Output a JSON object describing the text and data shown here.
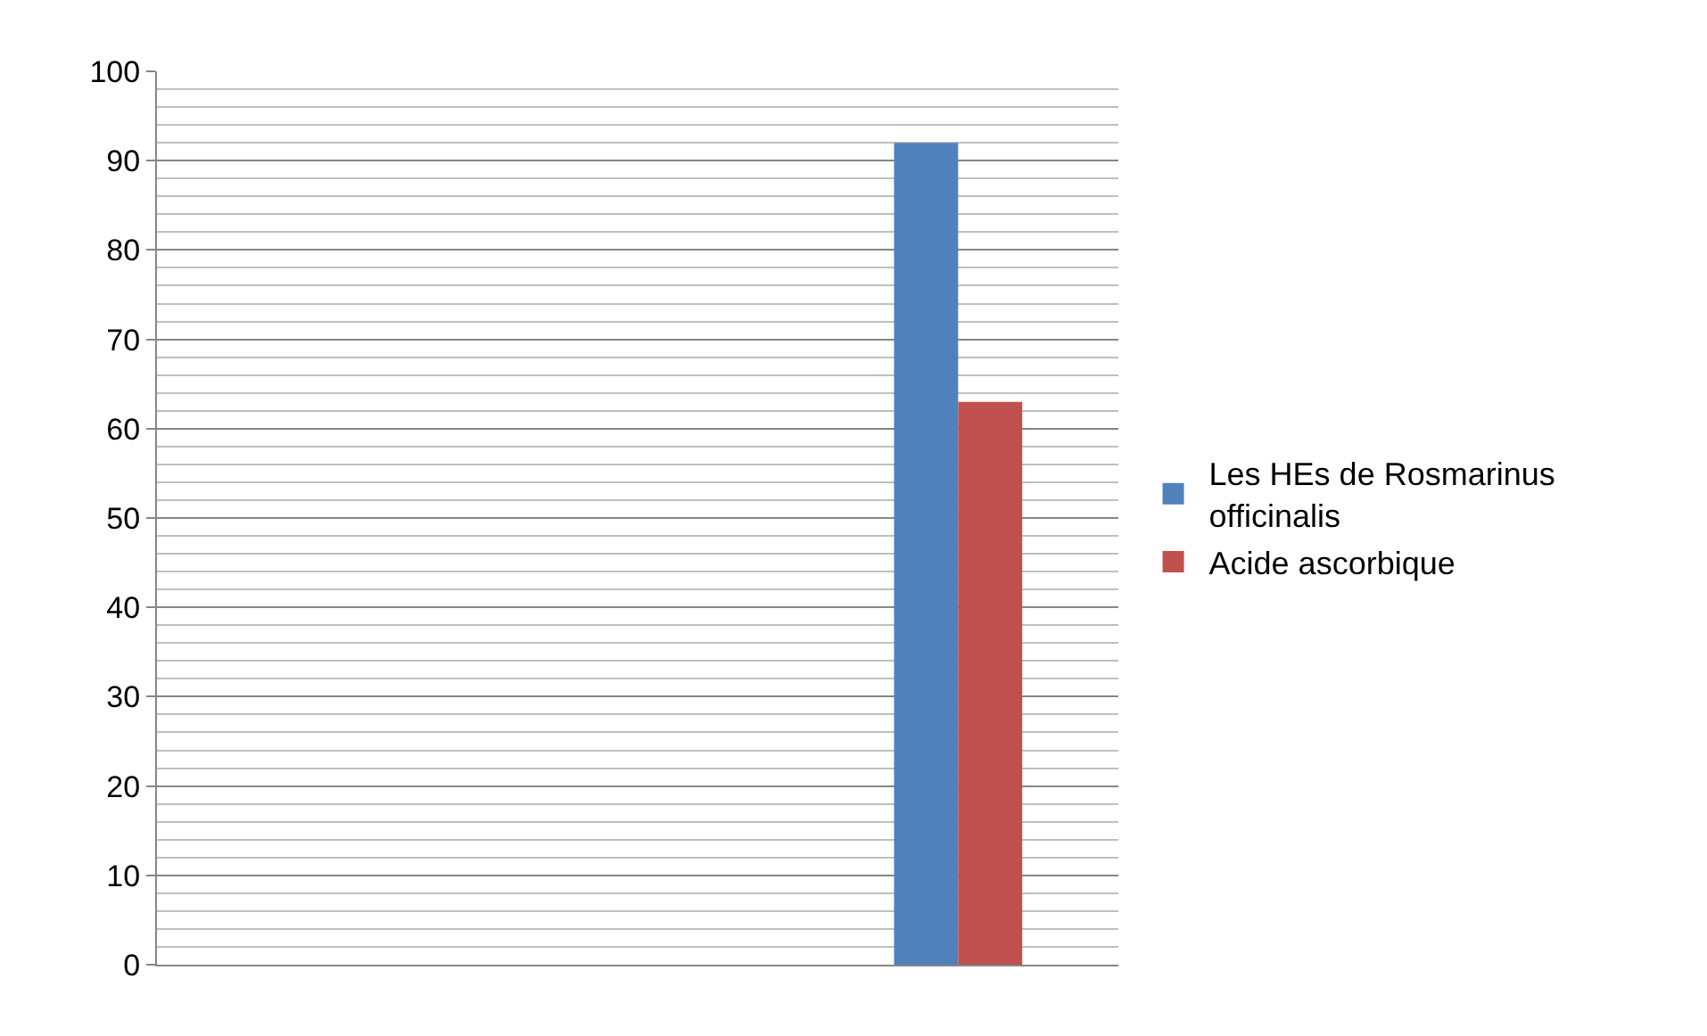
{
  "chart_data": {
    "type": "bar",
    "categories": [
      null,
      null,
      null
    ],
    "series": [
      {
        "name": "Les HEs de Rosmarinus officinalis",
        "color": "#4f81bd",
        "values": [
          null,
          null,
          92
        ]
      },
      {
        "name": "Acide ascorbique",
        "color": "#c0504d",
        "values": [
          null,
          null,
          63
        ]
      }
    ],
    "ylim": [
      0,
      100
    ],
    "yticks": [
      0,
      10,
      20,
      30,
      40,
      50,
      60,
      70,
      80,
      90,
      100
    ],
    "grid": "y",
    "legend": "right"
  }
}
